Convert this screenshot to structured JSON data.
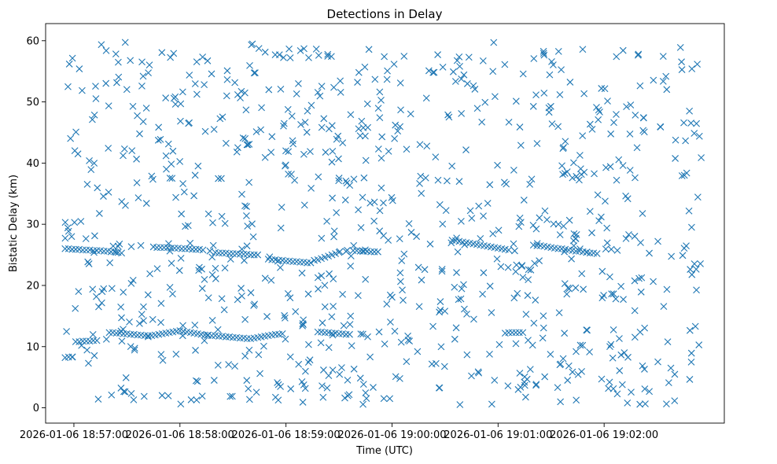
{
  "chart_data": {
    "type": "scatter",
    "title": "Detections in Delay",
    "xlabel": "Time (UTC)",
    "ylabel": "Bistatic Delay (km)",
    "marker": "x",
    "series_color": "#1f77b4",
    "grid": false,
    "xlim_seconds": [
      -16,
      368
    ],
    "ylim": [
      -2.5,
      62.8
    ],
    "x_start": "2026-01-06 18:57:00",
    "x_ticks": [
      {
        "seconds": 0,
        "label": "2026-01-06 18:57:00"
      },
      {
        "seconds": 60,
        "label": "2026-01-06 18:58:00"
      },
      {
        "seconds": 120,
        "label": "2026-01-06 18:59:00"
      },
      {
        "seconds": 180,
        "label": "2026-01-06 19:00:00"
      },
      {
        "seconds": 240,
        "label": "2026-01-06 19:01:00"
      },
      {
        "seconds": 300,
        "label": "2026-01-06 19:02:00"
      }
    ],
    "y_ticks": [
      {
        "value": 0,
        "label": "0"
      },
      {
        "value": 10,
        "label": "10"
      },
      {
        "value": 20,
        "label": "20"
      },
      {
        "value": 30,
        "label": "30"
      },
      {
        "value": 40,
        "label": "40"
      },
      {
        "value": 50,
        "label": "50"
      },
      {
        "value": 60,
        "label": "60"
      }
    ],
    "track_series": [
      {
        "name": "upper-track",
        "x_seconds": [
          -5.0,
          -3.0,
          -1.0,
          1.0,
          3.0,
          5.0,
          7.0,
          9.0,
          11.0,
          13.0,
          15.0,
          17.0,
          19.0,
          21.0,
          23.0,
          25.0,
          27.0
        ],
        "y": [
          26.0,
          26.0,
          25.9,
          25.9,
          25.9,
          25.8,
          25.8,
          25.8,
          25.7,
          25.7,
          25.7,
          25.6,
          25.6,
          25.5,
          25.5,
          25.4,
          25.3
        ]
      },
      {
        "name": "upper-track-b",
        "x_seconds": [
          45.0,
          47.0,
          49.0,
          51.0,
          53.0,
          55.0,
          57.0,
          59.0,
          61.0,
          63.0,
          65.0,
          67.0,
          69.0,
          71.0,
          73.0
        ],
        "y": [
          26.3,
          26.2,
          26.2,
          26.2,
          26.2,
          26.1,
          26.1,
          26.1,
          26.0,
          26.0,
          26.0,
          25.9,
          25.9,
          25.9,
          25.8
        ]
      },
      {
        "name": "upper-track-c",
        "x_seconds": [
          80.0,
          82.0,
          84.0,
          86.0,
          88.0,
          90.0,
          92.0,
          94.0,
          96.0,
          98.0,
          100.0,
          102.0,
          104.0
        ],
        "y": [
          25.4,
          25.3,
          25.3,
          25.3,
          25.2,
          25.2,
          25.2,
          25.1,
          25.1,
          25.1,
          25.0,
          25.0,
          25.0
        ]
      },
      {
        "name": "upper-track-d",
        "x_seconds": [
          110.0,
          112.0,
          114.0,
          116.0,
          118.0,
          120.0,
          122.0,
          124.0,
          126.0,
          128.0,
          130.0,
          132.0,
          134.0
        ],
        "y": [
          24.3,
          24.2,
          24.2,
          24.1,
          24.1,
          24.0,
          24.0,
          23.9,
          23.9,
          23.8,
          23.8,
          23.7,
          23.7
        ]
      },
      {
        "name": "upper-track-e",
        "x_seconds": [
          136.0,
          138.0,
          140.0,
          142.0,
          144.0,
          146.0,
          148.0,
          150.0
        ],
        "y": [
          24.1,
          24.2,
          24.4,
          24.6,
          24.8,
          25.0,
          25.2,
          25.4
        ]
      },
      {
        "name": "upper-track-f",
        "x_seconds": [
          158.0,
          160.0,
          162.0,
          164.0,
          166.0,
          168.0,
          170.0,
          172.0
        ],
        "y": [
          25.7,
          25.7,
          25.6,
          25.6,
          25.6,
          25.5,
          25.5,
          25.5
        ]
      },
      {
        "name": "upper-track-g",
        "x_seconds": [
          214.0,
          216.0,
          218.0,
          220.0,
          222.0,
          224.0,
          226.0,
          228.0,
          230.0,
          232.0,
          234.0,
          236.0,
          238.0,
          240.0,
          242.0,
          244.0,
          246.0
        ],
        "y": [
          27.4,
          27.3,
          27.2,
          27.1,
          27.0,
          26.9,
          26.8,
          26.7,
          26.6,
          26.5,
          26.4,
          26.3,
          26.2,
          26.1,
          26.0,
          25.9,
          25.8
        ]
      },
      {
        "name": "upper-track-h",
        "x_seconds": [
          260.0,
          262.0,
          264.0,
          266.0,
          268.0,
          270.0,
          272.0,
          274.0,
          276.0,
          278.0,
          280.0,
          282.0,
          284.0,
          286.0,
          288.0,
          290.0,
          292.0,
          294.0,
          296.0
        ],
        "y": [
          26.6,
          26.5,
          26.5,
          26.4,
          26.3,
          26.2,
          26.1,
          26.0,
          26.0,
          25.9,
          25.8,
          25.7,
          25.6,
          25.6,
          25.5,
          25.4,
          25.3,
          25.3,
          25.2
        ]
      },
      {
        "name": "lower-track",
        "x_seconds": [
          -5.0,
          -3.0,
          -1.0,
          1.0,
          3.0,
          5.0,
          7.0,
          9.0,
          11.0,
          13.0
        ],
        "y": [
          8.2,
          8.3,
          8.3,
          10.8,
          10.8,
          10.9,
          10.9,
          10.9,
          11.0,
          11.0
        ]
      },
      {
        "name": "lower-track-b",
        "x_seconds": [
          20.0,
          22.0,
          24.0,
          26.0,
          28.0,
          30.0,
          32.0,
          34.0,
          36.0,
          38.0,
          40.0,
          42.0,
          44.0,
          46.0,
          48.0,
          50.0,
          52.0,
          54.0,
          56.0,
          58.0,
          60.0,
          62.0,
          64.0,
          66.0,
          68.0,
          70.0,
          72.0
        ],
        "y": [
          12.3,
          12.3,
          12.2,
          12.2,
          12.1,
          12.1,
          12.0,
          12.0,
          11.9,
          11.9,
          11.8,
          11.8,
          11.8,
          11.9,
          12.0,
          12.1,
          12.2,
          12.3,
          12.4,
          12.5,
          12.6,
          12.5,
          12.4,
          12.3,
          12.2,
          12.1,
          12.0
        ]
      },
      {
        "name": "lower-track-c",
        "x_seconds": [
          74.0,
          76.0,
          78.0,
          80.0,
          82.0,
          84.0,
          86.0,
          88.0,
          90.0,
          92.0,
          94.0,
          96.0,
          98.0,
          100.0,
          102.0,
          104.0,
          106.0,
          108.0,
          110.0,
          112.0,
          114.0,
          116.0,
          118.0
        ],
        "y": [
          11.9,
          11.9,
          11.8,
          11.8,
          11.7,
          11.7,
          11.6,
          11.6,
          11.5,
          11.5,
          11.4,
          11.4,
          11.3,
          11.3,
          11.4,
          11.5,
          11.6,
          11.7,
          11.8,
          11.9,
          12.0,
          12.0,
          12.1
        ]
      },
      {
        "name": "lower-track-d",
        "x_seconds": [
          138.0,
          140.0,
          142.0,
          144.0,
          146.0,
          148.0,
          150.0,
          152.0,
          154.0,
          156.0
        ],
        "y": [
          12.4,
          12.4,
          12.3,
          12.3,
          12.2,
          12.2,
          12.1,
          12.1,
          12.0,
          12.0
        ]
      },
      {
        "name": "lower-track-e",
        "x_seconds": [
          244.0,
          246.0,
          248.0,
          250.0,
          252.0,
          254.0
        ],
        "y": [
          12.2,
          12.3,
          12.3,
          12.3,
          12.3,
          12.3
        ]
      }
    ]
  }
}
